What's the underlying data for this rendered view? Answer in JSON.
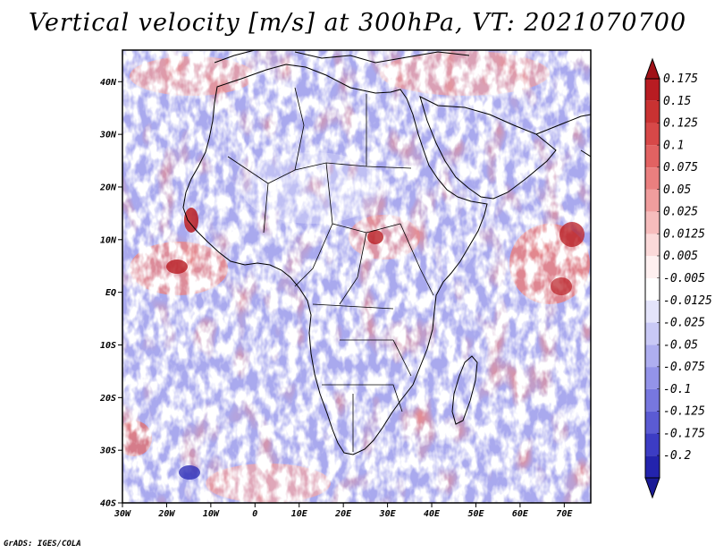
{
  "title": "Vertical velocity [m/s] at 300hPa, VT: 2021070700",
  "credit": "GrADS: IGES/COLA",
  "map": {
    "lon_range": [
      -30,
      76
    ],
    "lat_range": [
      -40,
      46
    ],
    "lat_ticks": [
      {
        "value": 40,
        "label": "40N"
      },
      {
        "value": 30,
        "label": "30N"
      },
      {
        "value": 20,
        "label": "20N"
      },
      {
        "value": 10,
        "label": "10N"
      },
      {
        "value": 0,
        "label": "EQ"
      },
      {
        "value": -10,
        "label": "10S"
      },
      {
        "value": -20,
        "label": "20S"
      },
      {
        "value": -30,
        "label": "30S"
      },
      {
        "value": -40,
        "label": "40S"
      }
    ],
    "lon_ticks": [
      {
        "value": -30,
        "label": "30W"
      },
      {
        "value": -20,
        "label": "20W"
      },
      {
        "value": -10,
        "label": "10W"
      },
      {
        "value": 0,
        "label": "0"
      },
      {
        "value": 10,
        "label": "10E"
      },
      {
        "value": 20,
        "label": "20E"
      },
      {
        "value": 30,
        "label": "30E"
      },
      {
        "value": 40,
        "label": "40E"
      },
      {
        "value": 50,
        "label": "50E"
      },
      {
        "value": 60,
        "label": "60E"
      },
      {
        "value": 70,
        "label": "70E"
      }
    ]
  },
  "colorbar": {
    "levels": [
      {
        "label": "0.175",
        "color": "#b81c22"
      },
      {
        "label": "0.15",
        "color": "#c93232"
      },
      {
        "label": "0.125",
        "color": "#d74848"
      },
      {
        "label": "0.1",
        "color": "#e26262"
      },
      {
        "label": "0.075",
        "color": "#ea7f7f"
      },
      {
        "label": "0.05",
        "color": "#f09d9d"
      },
      {
        "label": "0.025",
        "color": "#f6bcbc"
      },
      {
        "label": "0.0125",
        "color": "#fbd9d9"
      },
      {
        "label": "0.005",
        "color": "#fff0f0"
      },
      {
        "label": "-0.005",
        "color": "#ffffff"
      },
      {
        "label": "-0.0125",
        "color": "#e4e4fb"
      },
      {
        "label": "-0.025",
        "color": "#c9c9f6"
      },
      {
        "label": "-0.05",
        "color": "#aeaef0"
      },
      {
        "label": "-0.075",
        "color": "#9393e9"
      },
      {
        "label": "-0.1",
        "color": "#7777df"
      },
      {
        "label": "-0.125",
        "color": "#5b5bd3"
      },
      {
        "label": "-0.175",
        "color": "#3c3cc4"
      },
      {
        "label": "-0.2",
        "color": "#2323ad"
      }
    ],
    "top_color": "#a01218",
    "bottom_color": "#1a1a96"
  }
}
